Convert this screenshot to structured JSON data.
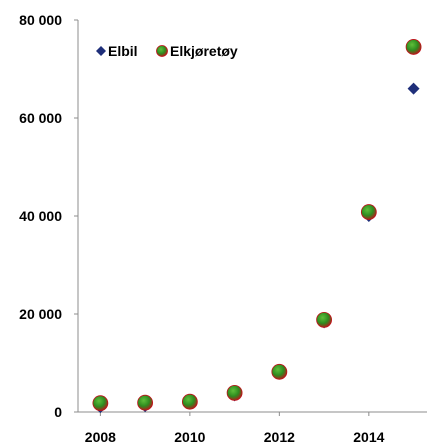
{
  "chart_data": {
    "type": "scatter",
    "x_ticks": [
      "2008",
      "2010",
      "2012",
      "2014"
    ],
    "y_ticks": [
      "0",
      "20 000",
      "40 000",
      "60 000",
      "80 000"
    ],
    "xlim": [
      2007.5,
      2015.3
    ],
    "ylim": [
      0,
      80000
    ],
    "grid": false,
    "legend_position": "top-left",
    "series": [
      {
        "name": "Elbil",
        "marker": "diamond",
        "color": "#1f2f7a",
        "points": [
          {
            "x": 2008,
            "y": 1000
          },
          {
            "x": 2009,
            "y": 1200
          },
          {
            "x": 2010,
            "y": 1700
          },
          {
            "x": 2011,
            "y": 3400
          },
          {
            "x": 2012,
            "y": 8000
          },
          {
            "x": 2013,
            "y": 18300
          },
          {
            "x": 2014,
            "y": 40000
          },
          {
            "x": 2015,
            "y": 66000
          }
        ]
      },
      {
        "name": "Elkjøretøy",
        "marker": "circle",
        "color": "#2e8b1f",
        "edge_color": "#c0111a",
        "points": [
          {
            "x": 2008,
            "y": 1800
          },
          {
            "x": 2009,
            "y": 1900
          },
          {
            "x": 2010,
            "y": 2100
          },
          {
            "x": 2011,
            "y": 3900
          },
          {
            "x": 2012,
            "y": 8200
          },
          {
            "x": 2013,
            "y": 18800
          },
          {
            "x": 2014,
            "y": 40800
          },
          {
            "x": 2015,
            "y": 74500
          }
        ]
      }
    ]
  }
}
